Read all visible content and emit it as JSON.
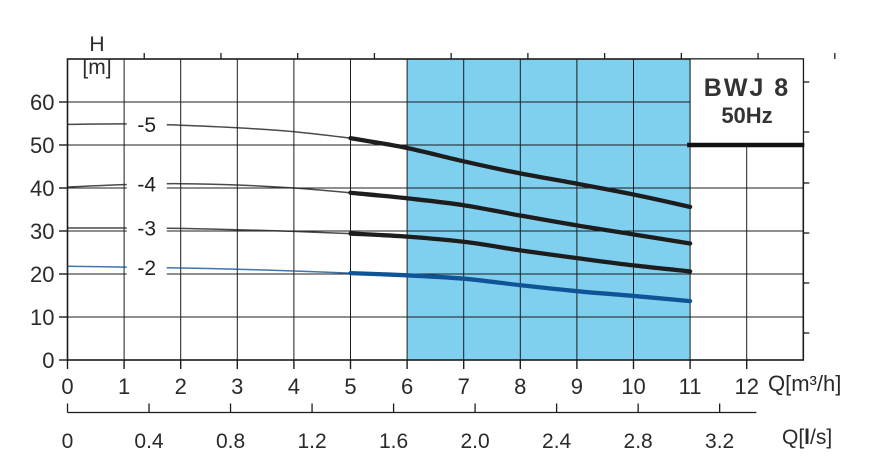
{
  "chart": {
    "model_label": "BWJ 8",
    "frequency_label": "50Hz",
    "y_axis_title_1": "H",
    "y_axis_title_2": "[m]",
    "x_axis_title": "Q[m³/h]",
    "x2_axis_title_prefix": "Q[",
    "x2_axis_title_unit": "l",
    "x2_axis_title_suffix": "/s]"
  },
  "chart_data": {
    "type": "line",
    "title": "BWJ 8 50Hz pump performance curves",
    "xlabel": "Q[m³/h]",
    "ylabel": "H [m]",
    "x2label": "Q[l/s]",
    "x": [
      0,
      1,
      2,
      3,
      4,
      5,
      6,
      7,
      8,
      9,
      10,
      11
    ],
    "series": [
      {
        "name": "-5",
        "color": "#1d1d1d",
        "values": [
          54.8,
          54.9,
          54.6,
          54.0,
          53.1,
          51.6,
          49.3,
          46.2,
          43.4,
          41.0,
          38.5,
          35.6
        ]
      },
      {
        "name": "-4",
        "color": "#1d1d1d",
        "values": [
          40.2,
          40.8,
          41.0,
          40.7,
          40.0,
          38.9,
          37.6,
          36.0,
          33.6,
          31.3,
          29.2,
          27.1
        ]
      },
      {
        "name": "-3",
        "color": "#1d1d1d",
        "values": [
          30.7,
          30.7,
          30.6,
          30.3,
          29.9,
          29.4,
          28.7,
          27.5,
          25.5,
          23.7,
          22.0,
          20.6
        ]
      },
      {
        "name": "-2",
        "color": "#0f5496",
        "values": [
          21.8,
          21.6,
          21.4,
          21.1,
          20.7,
          20.2,
          19.7,
          18.9,
          17.4,
          16.0,
          14.9,
          13.7
        ]
      }
    ],
    "xlim": [
      0,
      13
    ],
    "ylim": [
      0,
      70
    ],
    "grid": true,
    "legend": "inline curve labels",
    "x_ticks": [
      "0",
      "1",
      "2",
      "3",
      "4",
      "5",
      "6",
      "7",
      "8",
      "9",
      "10",
      "11",
      "12"
    ],
    "y_ticks": [
      "0",
      "10",
      "20",
      "30",
      "40",
      "50",
      "60"
    ],
    "x2_ticks": [
      "0",
      "0.4",
      "0.8",
      "1.2",
      "1.6",
      "2.0",
      "2.4",
      "2.8",
      "3.2"
    ],
    "x2_tick_values": [
      0,
      0.4,
      0.8,
      1.2,
      1.6,
      2.0,
      2.4,
      2.8,
      3.2
    ],
    "highlight_region": {
      "x_start": 6,
      "x_end": 11,
      "color": "#7fd0ef"
    },
    "bold_from_x": 5,
    "curve_label_x": 1.4,
    "colors": {
      "grid": "#1c1c1c",
      "text": "#2a2a2a",
      "region": "#7fd0ef",
      "blue_curve": "#0f5496",
      "black_curve": "#1d1d1d"
    }
  }
}
